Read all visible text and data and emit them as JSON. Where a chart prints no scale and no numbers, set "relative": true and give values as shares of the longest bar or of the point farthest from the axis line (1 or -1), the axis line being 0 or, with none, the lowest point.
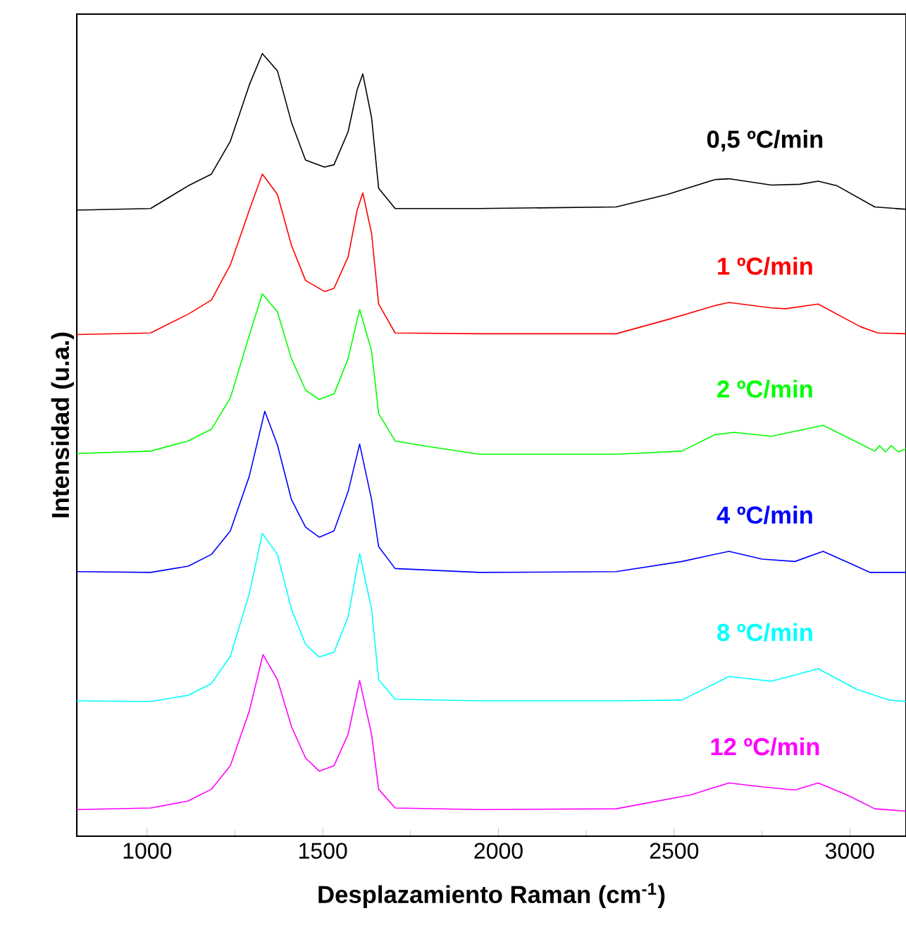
{
  "chart_data": {
    "type": "line",
    "xlabel": "Desplazamiento Raman (cm$^{-1}$)",
    "ylabel": "Intensidad (u.a.)",
    "relative": true,
    "xlim": [
      800,
      3160
    ],
    "xticks": [
      1000,
      1500,
      2000,
      2500,
      3000
    ],
    "series": [
      {
        "name": "0,5 ºC/min",
        "color": "#000000",
        "x": [
          800,
          1010,
          1117,
          1183,
          1237,
          1291,
          1328,
          1371,
          1411,
          1451,
          1505,
          1532,
          1572,
          1598,
          1614,
          1639,
          1659,
          1706,
          1946,
          2335,
          2481,
          2616,
          2656,
          2777,
          2857,
          2910,
          2964,
          3071,
          3160
        ],
        "values": [
          0.8,
          0.802,
          0.831,
          0.846,
          0.888,
          0.96,
          1.0,
          0.978,
          0.912,
          0.864,
          0.855,
          0.858,
          0.9,
          0.954,
          0.974,
          0.918,
          0.828,
          0.802,
          0.802,
          0.804,
          0.82,
          0.839,
          0.84,
          0.832,
          0.833,
          0.837,
          0.831,
          0.804,
          0.801
        ]
      },
      {
        "name": "1 ºC/min",
        "color": "#ff0000",
        "x": [
          800,
          1010,
          1117,
          1183,
          1237,
          1291,
          1328,
          1371,
          1411,
          1451,
          1505,
          1532,
          1572,
          1598,
          1614,
          1639,
          1659,
          1706,
          1946,
          2335,
          2481,
          2616,
          2656,
          2777,
          2817,
          2910,
          3030,
          3080,
          3160
        ],
        "values": [
          0.641,
          0.643,
          0.667,
          0.685,
          0.73,
          0.8,
          0.846,
          0.82,
          0.755,
          0.71,
          0.696,
          0.7,
          0.74,
          0.8,
          0.822,
          0.77,
          0.68,
          0.643,
          0.642,
          0.642,
          0.66,
          0.678,
          0.682,
          0.675,
          0.674,
          0.68,
          0.651,
          0.643,
          0.642
        ]
      },
      {
        "name": "2 ºC/min",
        "color": "#00ff00",
        "x": [
          800,
          1010,
          1117,
          1183,
          1237,
          1291,
          1328,
          1371,
          1411,
          1451,
          1490,
          1532,
          1572,
          1605,
          1639,
          1659,
          1706,
          1800,
          1946,
          2335,
          2522,
          2616,
          2670,
          2777,
          2924,
          3018,
          3071,
          3085,
          3101,
          3118,
          3138,
          3160
        ],
        "values": [
          0.489,
          0.492,
          0.505,
          0.52,
          0.56,
          0.64,
          0.693,
          0.67,
          0.61,
          0.57,
          0.558,
          0.565,
          0.61,
          0.673,
          0.62,
          0.54,
          0.505,
          0.498,
          0.488,
          0.488,
          0.492,
          0.513,
          0.516,
          0.511,
          0.525,
          0.504,
          0.492,
          0.499,
          0.491,
          0.499,
          0.491,
          0.495
        ]
      },
      {
        "name": "4 ºC/min",
        "color": "#0000ff",
        "x": [
          800,
          1010,
          1117,
          1183,
          1237,
          1291,
          1335,
          1371,
          1411,
          1451,
          1490,
          1532,
          1572,
          1605,
          1639,
          1659,
          1706,
          1946,
          2335,
          2522,
          2656,
          2750,
          2844,
          2924,
          3004,
          3058,
          3160
        ],
        "values": [
          0.338,
          0.337,
          0.345,
          0.36,
          0.39,
          0.46,
          0.543,
          0.5,
          0.43,
          0.395,
          0.382,
          0.39,
          0.44,
          0.501,
          0.43,
          0.37,
          0.342,
          0.337,
          0.338,
          0.351,
          0.364,
          0.354,
          0.351,
          0.364,
          0.348,
          0.337,
          0.337
        ]
      },
      {
        "name": "8 ºC/min",
        "color": "#00ffff",
        "x": [
          800,
          1010,
          1117,
          1183,
          1237,
          1291,
          1328,
          1371,
          1411,
          1451,
          1490,
          1532,
          1572,
          1605,
          1639,
          1659,
          1706,
          1946,
          2335,
          2522,
          2656,
          2777,
          2910,
          3018,
          3111,
          3160
        ],
        "values": [
          0.173,
          0.172,
          0.18,
          0.195,
          0.23,
          0.31,
          0.387,
          0.36,
          0.29,
          0.245,
          0.229,
          0.235,
          0.28,
          0.361,
          0.29,
          0.2,
          0.175,
          0.173,
          0.173,
          0.174,
          0.204,
          0.198,
          0.214,
          0.188,
          0.174,
          0.172
        ]
      },
      {
        "name": "12 ºC/min",
        "color": "#ff00ff",
        "x": [
          800,
          1010,
          1117,
          1183,
          1237,
          1291,
          1330,
          1371,
          1411,
          1451,
          1490,
          1532,
          1572,
          1605,
          1639,
          1659,
          1706,
          1946,
          2335,
          2549,
          2656,
          2750,
          2844,
          2910,
          2991,
          3071,
          3160
        ],
        "values": [
          0.034,
          0.036,
          0.045,
          0.06,
          0.09,
          0.16,
          0.232,
          0.2,
          0.14,
          0.1,
          0.083,
          0.09,
          0.13,
          0.199,
          0.13,
          0.06,
          0.036,
          0.034,
          0.035,
          0.053,
          0.068,
          0.063,
          0.059,
          0.068,
          0.053,
          0.035,
          0.032
        ]
      }
    ]
  }
}
